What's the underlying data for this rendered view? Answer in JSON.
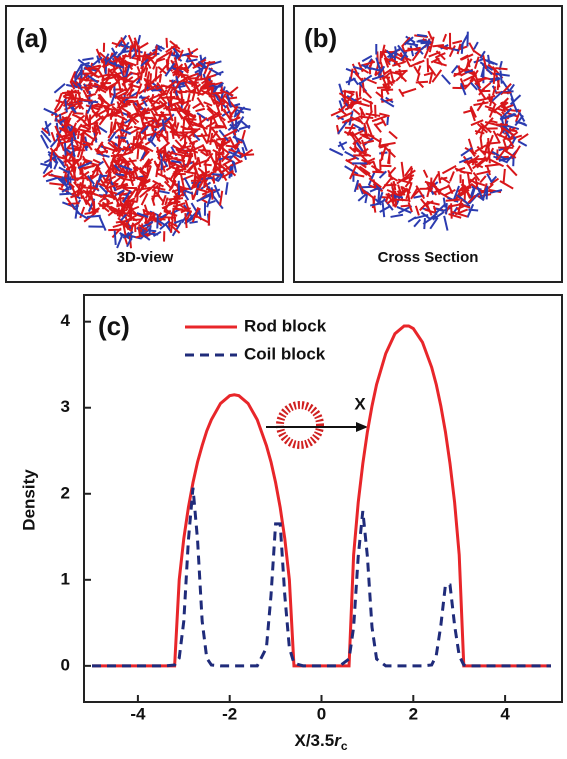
{
  "panels": {
    "a": {
      "label": "(a)",
      "caption": "3D-view"
    },
    "b": {
      "label": "(b)",
      "caption": "Cross Section"
    }
  },
  "chart_data": {
    "type": "line",
    "label": "(c)",
    "xlabel": "X/3.5",
    "xlabel_symbol": "r",
    "xlabel_subscript": "c",
    "ylabel": "Density",
    "annotation": "X",
    "x": [
      -5,
      -4,
      -3.4,
      -3.2,
      -3.1,
      -3.0,
      -2.9,
      -2.8,
      -2.7,
      -2.6,
      -2.5,
      -2.4,
      -2.2,
      -2.0,
      -1.9,
      -1.8,
      -1.6,
      -1.4,
      -1.2,
      -1.1,
      -1.0,
      -0.9,
      -0.8,
      -0.7,
      -0.6,
      -0.4,
      0,
      0.4,
      0.6,
      0.7,
      0.8,
      0.9,
      1.0,
      1.1,
      1.2,
      1.4,
      1.6,
      1.8,
      1.9,
      2.0,
      2.2,
      2.4,
      2.5,
      2.6,
      2.7,
      2.8,
      2.9,
      3.0,
      3.1,
      3.2,
      3.4,
      4,
      5
    ],
    "series": [
      {
        "name": "Rod block",
        "color": "#e8262a",
        "dash": false,
        "values": [
          0,
          0,
          0,
          0,
          1.0,
          1.48,
          1.84,
          2.13,
          2.37,
          2.56,
          2.73,
          2.86,
          3.05,
          3.14,
          3.15,
          3.14,
          3.05,
          2.86,
          2.56,
          2.37,
          2.13,
          1.84,
          1.48,
          1.0,
          0,
          0,
          0,
          0,
          0,
          1.29,
          1.9,
          2.35,
          2.72,
          3.02,
          3.27,
          3.63,
          3.86,
          3.95,
          3.95,
          3.92,
          3.76,
          3.47,
          3.27,
          3.02,
          2.72,
          2.35,
          1.9,
          1.29,
          0,
          0,
          0,
          0,
          0
        ]
      },
      {
        "name": "Coil block",
        "color": "#1f2b7a",
        "dash": true,
        "values": [
          0,
          0,
          0,
          0.01,
          0.09,
          0.52,
          1.46,
          2.07,
          1.46,
          0.52,
          0.09,
          0.01,
          0,
          0,
          0,
          0,
          0,
          0,
          0.21,
          0.82,
          1.65,
          1.65,
          0.82,
          0.21,
          0.03,
          0,
          0,
          0,
          0.08,
          0.45,
          1.27,
          1.8,
          1.27,
          0.45,
          0.08,
          0,
          0,
          0,
          0,
          0,
          0,
          0.01,
          0.12,
          0.47,
          0.94,
          0.94,
          0.47,
          0.12,
          0.01,
          0,
          0,
          0,
          0
        ]
      }
    ],
    "xlim": [
      -5,
      5
    ],
    "ylim": [
      -0.42,
      4.31
    ],
    "xticks": [
      -4,
      -2,
      0,
      2,
      4
    ],
    "yticks": [
      0,
      1,
      2,
      3,
      4
    ]
  }
}
